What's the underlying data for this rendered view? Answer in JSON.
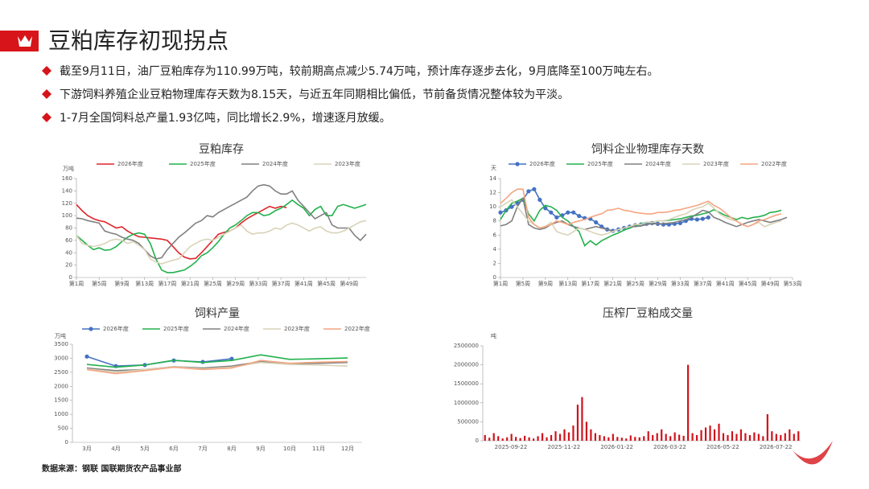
{
  "header": {
    "title": "豆粕库存初现拐点"
  },
  "bullets": [
    "截至9月11日，油厂豆粕库存为110.99万吨，较前期高点减少5.74万吨，预计库存逐步去化，9月底降至100万吨左右。",
    "下游饲料养殖企业豆粕物理库存天数为8.15天，与近五年同期相比偏低，节前备货情况整体较为平淡。",
    "1-7月全国饲料总产量1.93亿吨，同比增长2.9%，增速逐月放缓。"
  ],
  "source": "数据来源：钢联  国联期货农产品事业部",
  "chart_data": [
    {
      "type": "line",
      "title": "豆粕库存",
      "y_unit": "万吨",
      "x": [
        1,
        2,
        3,
        4,
        5,
        6,
        7,
        8,
        9,
        10,
        11,
        12,
        13,
        14,
        15,
        16,
        17,
        18,
        19,
        20,
        21,
        22,
        23,
        24,
        25,
        26,
        27,
        28,
        29,
        30,
        31,
        32,
        33,
        34,
        35,
        36,
        37,
        38,
        39,
        40,
        41,
        42,
        43,
        44,
        45,
        46,
        47,
        48,
        49,
        50,
        51,
        52
      ],
      "xlim": [
        1,
        52
      ],
      "xticks": [
        {
          "value": 1,
          "label": "第1周"
        },
        {
          "value": 5,
          "label": "第5周"
        },
        {
          "value": 9,
          "label": "第9周"
        },
        {
          "value": 13,
          "label": "第13周"
        },
        {
          "value": 17,
          "label": "第17周"
        },
        {
          "value": 21,
          "label": "第21周"
        },
        {
          "value": 25,
          "label": "第25周"
        },
        {
          "value": 29,
          "label": "第29周"
        },
        {
          "value": 33,
          "label": "第33周"
        },
        {
          "value": 37,
          "label": "第37周"
        },
        {
          "value": 41,
          "label": "第41周"
        },
        {
          "value": 45,
          "label": "第45周"
        },
        {
          "value": 49,
          "label": "第49周"
        }
      ],
      "ylim": [
        0,
        160
      ],
      "yticks": [
        0,
        20,
        40,
        60,
        80,
        100,
        120,
        140,
        160
      ],
      "series": [
        {
          "name": "2026年度",
          "color": "#e0252b",
          "values": [
            118,
            108,
            100,
            95,
            92,
            90,
            85,
            80,
            82,
            75,
            70,
            66,
            65,
            64,
            63,
            62,
            60,
            50,
            40,
            33,
            30,
            31,
            40,
            50,
            60,
            70,
            73,
            75,
            80,
            88,
            95,
            100,
            105,
            110,
            115,
            112,
            115,
            113,
            null,
            null,
            null,
            null,
            null,
            null,
            null,
            null,
            null,
            null,
            null,
            null,
            null,
            null
          ]
        },
        {
          "name": "2025年度",
          "color": "#22b14c",
          "values": [
            68,
            60,
            52,
            45,
            48,
            44,
            45,
            50,
            58,
            65,
            70,
            72,
            70,
            55,
            30,
            12,
            8,
            8,
            10,
            12,
            18,
            25,
            35,
            40,
            48,
            58,
            70,
            80,
            85,
            92,
            100,
            105,
            105,
            100,
            102,
            108,
            112,
            118,
            125,
            118,
            112,
            100,
            110,
            115,
            100,
            100,
            115,
            118,
            115,
            112,
            115,
            118
          ]
        },
        {
          "name": "2024年度",
          "color": "#808080",
          "values": [
            96,
            95,
            92,
            90,
            88,
            75,
            72,
            70,
            65,
            62,
            60,
            55,
            45,
            35,
            30,
            32,
            45,
            55,
            65,
            72,
            80,
            88,
            92,
            100,
            98,
            105,
            110,
            115,
            120,
            125,
            130,
            140,
            148,
            150,
            148,
            140,
            135,
            135,
            140,
            125,
            115,
            105,
            95,
            100,
            105,
            85,
            80,
            80,
            80,
            68,
            60,
            70
          ]
        },
        {
          "name": "2023年度",
          "color": "#d9d3b8",
          "values": [
            68,
            55,
            52,
            50,
            52,
            55,
            60,
            62,
            60,
            55,
            58,
            52,
            45,
            30,
            25,
            22,
            25,
            28,
            30,
            40,
            50,
            55,
            60,
            62,
            60,
            65,
            70,
            75,
            80,
            85,
            75,
            70,
            72,
            72,
            75,
            80,
            78,
            85,
            88,
            85,
            80,
            75,
            80,
            82,
            75,
            72,
            72,
            75,
            80,
            85,
            90,
            92
          ]
        }
      ]
    },
    {
      "type": "line",
      "title": "饲料企业物理库存天数",
      "y_unit": "天",
      "x": [
        1,
        2,
        3,
        4,
        5,
        6,
        7,
        8,
        9,
        10,
        11,
        12,
        13,
        14,
        15,
        16,
        17,
        18,
        19,
        20,
        21,
        22,
        23,
        24,
        25,
        26,
        27,
        28,
        29,
        30,
        31,
        32,
        33,
        34,
        35,
        36,
        37,
        38,
        39,
        40,
        41,
        42,
        43,
        44,
        45,
        46,
        47,
        48,
        49,
        50,
        51,
        52,
        53
      ],
      "xlim": [
        1,
        53
      ],
      "xticks": [
        {
          "value": 1,
          "label": "第1周"
        },
        {
          "value": 5,
          "label": "第5周"
        },
        {
          "value": 9,
          "label": "第9周"
        },
        {
          "value": 13,
          "label": "第13周"
        },
        {
          "value": 17,
          "label": "第17周"
        },
        {
          "value": 21,
          "label": "第21周"
        },
        {
          "value": 25,
          "label": "第25周"
        },
        {
          "value": 29,
          "label": "第29周"
        },
        {
          "value": 33,
          "label": "第33周"
        },
        {
          "value": 37,
          "label": "第37周"
        },
        {
          "value": 41,
          "label": "第41周"
        },
        {
          "value": 45,
          "label": "第45周"
        },
        {
          "value": 49,
          "label": "第49周"
        },
        {
          "value": 53,
          "label": "第53周"
        }
      ],
      "ylim": [
        0,
        14
      ],
      "yticks": [
        0,
        2,
        4,
        6,
        8,
        10,
        12,
        14
      ],
      "series": [
        {
          "name": "2026年度",
          "color": "#4472c4",
          "marker": true,
          "values": [
            9.2,
            9.5,
            10,
            10.5,
            11,
            12.2,
            12.5,
            11,
            9.8,
            9.2,
            8.5,
            8.8,
            9.2,
            9.2,
            8.7,
            8.4,
            8.3,
            7.8,
            7.2,
            6.8,
            6.6,
            6.8,
            7.0,
            7.2,
            7.4,
            7.5,
            7.6,
            7.7,
            7.6,
            7.5,
            7.5,
            7.6,
            7.7,
            8.0,
            8.3,
            8.2,
            8.3,
            8.5,
            null,
            null,
            null,
            null,
            null,
            null,
            null,
            null,
            null,
            null,
            null,
            null,
            null,
            null,
            null
          ]
        },
        {
          "name": "2025年度",
          "color": "#22b14c",
          "values": [
            8.2,
            9.5,
            10.5,
            10.8,
            11.2,
            9,
            8,
            9.5,
            10.2,
            10,
            9.5,
            8.5,
            8,
            7.2,
            6.5,
            4.5,
            5.2,
            4.6,
            5.2,
            5.6,
            6,
            6.3,
            6.7,
            7,
            7.3,
            7.6,
            7.8,
            7.8,
            8,
            8,
            8.1,
            8.2,
            8.3,
            8.5,
            8.7,
            8.8,
            9,
            9.2,
            9.6,
            9.2,
            8.8,
            8.5,
            8.2,
            8.5,
            8.3,
            8.5,
            8.6,
            8.8,
            9.2,
            9.3,
            9.5,
            null,
            null
          ]
        },
        {
          "name": "2024年度",
          "color": "#808080",
          "values": [
            7.3,
            7.5,
            8,
            10,
            11.2,
            7.5,
            7,
            6.8,
            7,
            7.5,
            7.8,
            8,
            7.5,
            7.2,
            7,
            6.8,
            7,
            7.2,
            7,
            6.8,
            6.5,
            6.8,
            7,
            7.2,
            7.2,
            7.3,
            7.5,
            7.6,
            7.6,
            7.6,
            7.7,
            7.8,
            8,
            8.2,
            8.5,
            9,
            9.5,
            9.3,
            8.5,
            8.2,
            7.8,
            7.5,
            7.2,
            7.5,
            7.8,
            8,
            8.2,
            8,
            7.8,
            8,
            8.2,
            8.5,
            null
          ]
        },
        {
          "name": "2023年度",
          "color": "#d9d3b8",
          "values": [
            10,
            10.5,
            11,
            10,
            9,
            8,
            7.5,
            7,
            7.2,
            7.8,
            6.5,
            6.2,
            6,
            6.5,
            7,
            6.8,
            6.5,
            6.2,
            6,
            6.2,
            6.5,
            6.8,
            7,
            7.2,
            7.5,
            7.5,
            7.8,
            7.8,
            8,
            8,
            8.2,
            8.5,
            8.8,
            9,
            9.5,
            9.8,
            10,
            10.5,
            9.8,
            9,
            8.5,
            8.2,
            8,
            7.5,
            7.2,
            7.5,
            7.8,
            7.2,
            7.5,
            7.8,
            8,
            null,
            null
          ]
        },
        {
          "name": "2022年度",
          "color": "#f4a582",
          "values": [
            10.5,
            11.2,
            12,
            12.5,
            12.5,
            8.5,
            7.5,
            7,
            7.2,
            7.5,
            8,
            7.8,
            7.5,
            7.8,
            8,
            8.2,
            8.5,
            8.8,
            9,
            9.5,
            9.6,
            9.8,
            9.5,
            9.4,
            9.2,
            9.1,
            9,
            9,
            9.2,
            9.2,
            9.3,
            9.5,
            9.6,
            9.8,
            10,
            10.2,
            10.5,
            10.8,
            10.2,
            9.8,
            9.2,
            8.5,
            8,
            7.5,
            7.2,
            7.5,
            8,
            8.2,
            8.5,
            8.8,
            9,
            null,
            null
          ]
        }
      ]
    },
    {
      "type": "line",
      "title": "饲料产量",
      "y_unit": "万吨",
      "categories": [
        "3月",
        "4月",
        "5月",
        "6月",
        "7月",
        "8月",
        "9月",
        "10月",
        "11月",
        "12月"
      ],
      "ylim": [
        0,
        3500
      ],
      "yticks": [
        0,
        500,
        1000,
        1500,
        2000,
        2500,
        3000,
        3500
      ],
      "series": [
        {
          "name": "2026年度",
          "color": "#4472c4",
          "marker": true,
          "values": [
            3060,
            2720,
            2760,
            2920,
            2870,
            2980,
            null,
            null,
            null,
            null
          ]
        },
        {
          "name": "2025年度",
          "color": "#22b14c",
          "values": [
            2780,
            2680,
            2760,
            2930,
            2850,
            2920,
            3120,
            2960,
            2980,
            3010
          ]
        },
        {
          "name": "2024年度",
          "color": "#808080",
          "values": [
            2650,
            2560,
            2600,
            2700,
            2650,
            2720,
            2880,
            2800,
            2820,
            2850
          ]
        },
        {
          "name": "2023年度",
          "color": "#d9d3b8",
          "values": [
            2620,
            2500,
            2600,
            2700,
            2620,
            2680,
            2850,
            2780,
            2760,
            2720
          ]
        },
        {
          "name": "2022年度",
          "color": "#f4a582",
          "values": [
            2600,
            2450,
            2560,
            2680,
            2600,
            2650,
            2920,
            2820,
            2860,
            2880
          ]
        }
      ]
    },
    {
      "type": "bar",
      "title": "压榨厂豆粕成交量",
      "y_unit": "吨",
      "color": "#d0121b",
      "categories": [
        "2025-09-22",
        null,
        null,
        null,
        null,
        null,
        null,
        null,
        null,
        null,
        null,
        null,
        "2025-11-22",
        null,
        null,
        null,
        null,
        null,
        null,
        null,
        null,
        null,
        null,
        null,
        "2026-01-22",
        null,
        null,
        null,
        null,
        null,
        null,
        null,
        null,
        null,
        null,
        null,
        "2026-03-22",
        null,
        null,
        null,
        null,
        null,
        null,
        null,
        null,
        null,
        null,
        null,
        "2026-05-22",
        null,
        null,
        null,
        null,
        null,
        null,
        null,
        null,
        null,
        null,
        null,
        "2026-07-22",
        null,
        null,
        null,
        null,
        null,
        null,
        null,
        null,
        null,
        null,
        null
      ],
      "values": [
        150000,
        80000,
        200000,
        120000,
        60000,
        90000,
        180000,
        100000,
        70000,
        130000,
        90000,
        60000,
        120000,
        200000,
        90000,
        150000,
        250000,
        180000,
        300000,
        220000,
        400000,
        950000,
        1150000,
        500000,
        300000,
        200000,
        150000,
        120000,
        90000,
        180000,
        100000,
        80000,
        60000,
        140000,
        100000,
        90000,
        120000,
        250000,
        150000,
        200000,
        300000,
        180000,
        120000,
        220000,
        160000,
        130000,
        2000000,
        200000,
        150000,
        280000,
        350000,
        400000,
        300000,
        450000,
        200000,
        150000,
        250000,
        180000,
        300000,
        200000,
        150000,
        220000,
        180000,
        120000,
        700000,
        250000,
        180000,
        150000,
        200000,
        300000,
        180000,
        250000
      ],
      "ylim": [
        0,
        2500000
      ],
      "yticks": [
        0,
        500000,
        1000000,
        1500000,
        2000000,
        2500000
      ]
    }
  ]
}
